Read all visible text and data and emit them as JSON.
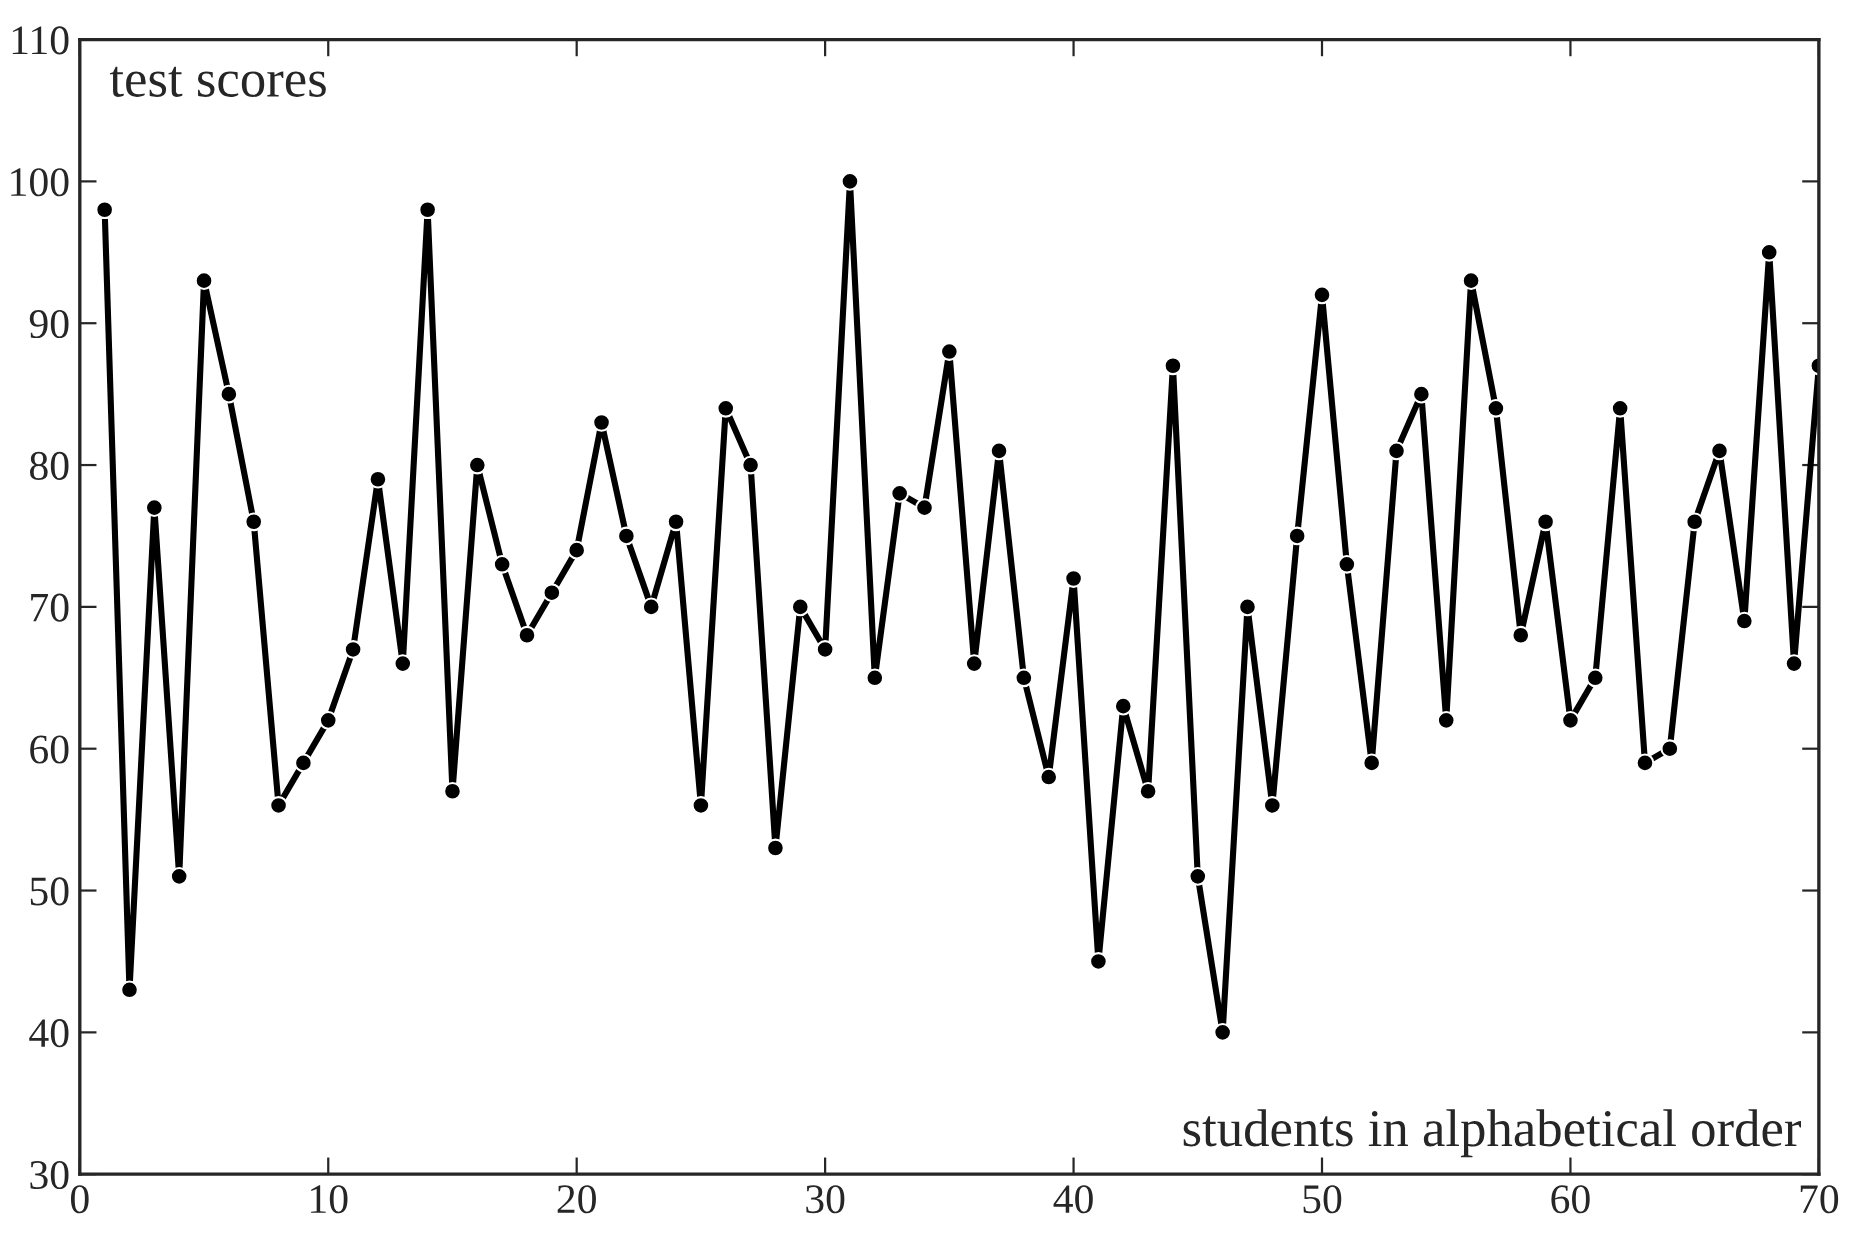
{
  "chart_data": {
    "type": "line",
    "xlabel": "students in alphabetical order",
    "ylabel": "test scores",
    "x": [
      1,
      2,
      3,
      4,
      5,
      6,
      7,
      8,
      9,
      10,
      11,
      12,
      13,
      14,
      15,
      16,
      17,
      18,
      19,
      20,
      21,
      22,
      23,
      24,
      25,
      26,
      27,
      28,
      29,
      30,
      31,
      32,
      33,
      34,
      35,
      36,
      37,
      38,
      39,
      40,
      41,
      42,
      43,
      44,
      45,
      46,
      47,
      48,
      49,
      50,
      51,
      52,
      53,
      54,
      55,
      56,
      57,
      58,
      59,
      60,
      61,
      62,
      63,
      64,
      65,
      66,
      67,
      68,
      69,
      70
    ],
    "series": [
      {
        "color": "#000000",
        "values": [
          98,
          43,
          77,
          51,
          93,
          85,
          76,
          56,
          59,
          62,
          67,
          79,
          66,
          98,
          57,
          80,
          73,
          68,
          71,
          74,
          83,
          75,
          70,
          76,
          56,
          84,
          80,
          53,
          70,
          67,
          100,
          65,
          78,
          77,
          88,
          66,
          81,
          65,
          58,
          72,
          45,
          63,
          57,
          87,
          51,
          40,
          70,
          56,
          75,
          92,
          73,
          59,
          81,
          85,
          62,
          93,
          84,
          68,
          76,
          62,
          65,
          84,
          59,
          60,
          76,
          81,
          69,
          95,
          66,
          87
        ]
      }
    ],
    "xlim": [
      0,
      70
    ],
    "xticks": [
      0,
      10,
      20,
      30,
      40,
      50,
      60,
      70
    ],
    "ylim": [
      30,
      110
    ],
    "yticks": [
      30,
      40,
      50,
      60,
      70,
      80,
      90,
      100,
      110
    ],
    "grid": false,
    "legend": false,
    "marker": "circle",
    "line_style": "solid"
  }
}
